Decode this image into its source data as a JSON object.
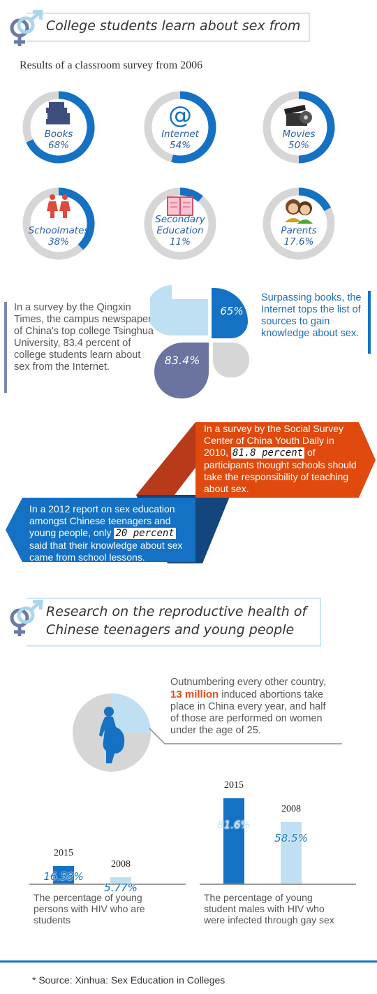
{
  "section1": {
    "title": "College students learn about sex from",
    "subtitle": "Results of a classroom survey from 2006"
  },
  "chart_data": [
    {
      "type": "pie",
      "title": "",
      "items": [
        {
          "label": "Books",
          "value": 68,
          "display": "68%",
          "icon": "books-icon"
        },
        {
          "label": "Internet",
          "value": 54,
          "display": "54%",
          "icon": "at-sign-icon"
        },
        {
          "label": "Movies",
          "value": 50,
          "display": "50%",
          "icon": "film-reel-icon"
        },
        {
          "label": "Schoolmates",
          "value": 38,
          "display": "38%",
          "icon": "students-icon"
        },
        {
          "label": "Secondary Education",
          "value": 11,
          "display": "11%",
          "icon": "book-icon"
        },
        {
          "label": "Parents",
          "value": 17.6,
          "display": "17.6%",
          "icon": "parents-icon"
        }
      ]
    },
    {
      "type": "bar",
      "categories": [
        "2015",
        "2008"
      ],
      "values": [
        16.58,
        5.77
      ],
      "labels": [
        "16.58%",
        "5.77%"
      ],
      "caption": "The percentage of young persons with HIV who are students",
      "ylim": [
        0,
        100
      ]
    },
    {
      "type": "bar",
      "categories": [
        "2015",
        "2008"
      ],
      "values": [
        81.6,
        58.5
      ],
      "labels": [
        "81.6%",
        "58.5%"
      ],
      "caption": "The percentage of young student males with HIV who were infected through gay sex",
      "ylim": [
        0,
        100
      ]
    },
    {
      "type": "pie",
      "slices": [
        {
          "value": 83.4,
          "label": "83.4%"
        },
        {
          "value": 65,
          "label": "65%"
        }
      ]
    },
    {
      "type": "pie",
      "slices": [
        {
          "value": 25
        }
      ]
    }
  ],
  "internet": {
    "left_text": "In a survey by the Qingxin Times, the campus newspaper of China's top college Tsinghua University, 83.4 percent of college students learn about sex from the Internet.",
    "right_text": "Surpassing books, the Internet tops the list of sources to gain knowledge about sex.",
    "pct_large": "83.4%",
    "pct_small": "65%"
  },
  "ribbons": {
    "orange_pre": "In a survey by the Social Survey Center of China Youth Daily in 2010,",
    "orange_hl": "81.8 percent",
    "orange_post": "of participants thought schools should take the responsibility of teaching about sex.",
    "blue_pre": "In a 2012 report on sex education amongst Chinese teenagers and young people, only",
    "blue_hl": "20 percent",
    "blue_post": "said that their knowledge about sex came from school lessons."
  },
  "section2": {
    "title_line1": "Research on the reproductive health of",
    "title_line2": "Chinese teenagers and young people"
  },
  "abortion": {
    "pre": "Outnumbering every other country,",
    "hl": "13 million",
    "post": "induced abortions take place in China every year, and half of those are performed on women under the age of 25."
  },
  "source": "* Source: Xinhua: Sex Education in Colleges",
  "colors": {
    "blue": "#1471c4",
    "gray": "#d6d6d6",
    "light_blue": "#bfe0f3",
    "orange": "#e04a0f",
    "navy": "#6b73a0"
  }
}
